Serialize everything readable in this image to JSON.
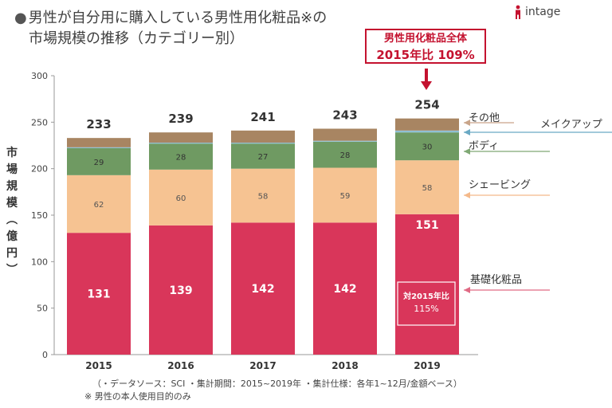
{
  "title": {
    "bullet": "●",
    "line1": "男性が自分用に購入している男性用化粧品※の",
    "line2": "市場規模の推移（カテゴリー別）"
  },
  "logo": {
    "text": "intage",
    "icon": "intage-logo-icon",
    "color": "#c4122f"
  },
  "callout": {
    "line1": "男性用化粧品全体",
    "line2": "2015年比 109%"
  },
  "footnotes": {
    "line1": "（・データソース：SCI ・集計期間：2015~2019年 ・集計仕様：各年1~12月/金額ベース）",
    "line2": "※ 男性の本人使用目的のみ"
  },
  "chart_data": {
    "type": "bar",
    "stacked": true,
    "categories": [
      "2015",
      "2016",
      "2017",
      "2018",
      "2019"
    ],
    "ylabel": "市場規模（億円）",
    "ylim": [
      0,
      300
    ],
    "yticks": [
      0,
      50,
      100,
      150,
      200,
      250,
      300
    ],
    "grid": false,
    "totals": [
      "233",
      "239",
      "241",
      "243",
      "254"
    ],
    "series": [
      {
        "name": "基礎化粧品",
        "values": [
          131,
          139,
          142,
          142,
          151
        ],
        "color": "#d9365a",
        "label_color": "#ffffff"
      },
      {
        "name": "シェービング",
        "values": [
          62,
          60,
          58,
          59,
          58
        ],
        "color": "#f6c392",
        "label_color": "#555555"
      },
      {
        "name": "ボディ",
        "values": [
          29,
          28,
          27,
          28,
          30
        ],
        "color": "#6f9a62",
        "label_color": "#333333"
      },
      {
        "name": "メイクアップ",
        "values": [
          1,
          1,
          1,
          1,
          2
        ],
        "color": "#8fc0d4",
        "label_color": "#333333"
      },
      {
        "name": "その他",
        "values": [
          10,
          11,
          13,
          13,
          13
        ],
        "color": "#a88562",
        "label_color": "#333333"
      }
    ],
    "series_labels_shown": [
      true,
      true,
      true,
      false,
      false
    ],
    "annotation": {
      "category": "2019",
      "line1": "対2015年比",
      "line2": "115%"
    }
  }
}
